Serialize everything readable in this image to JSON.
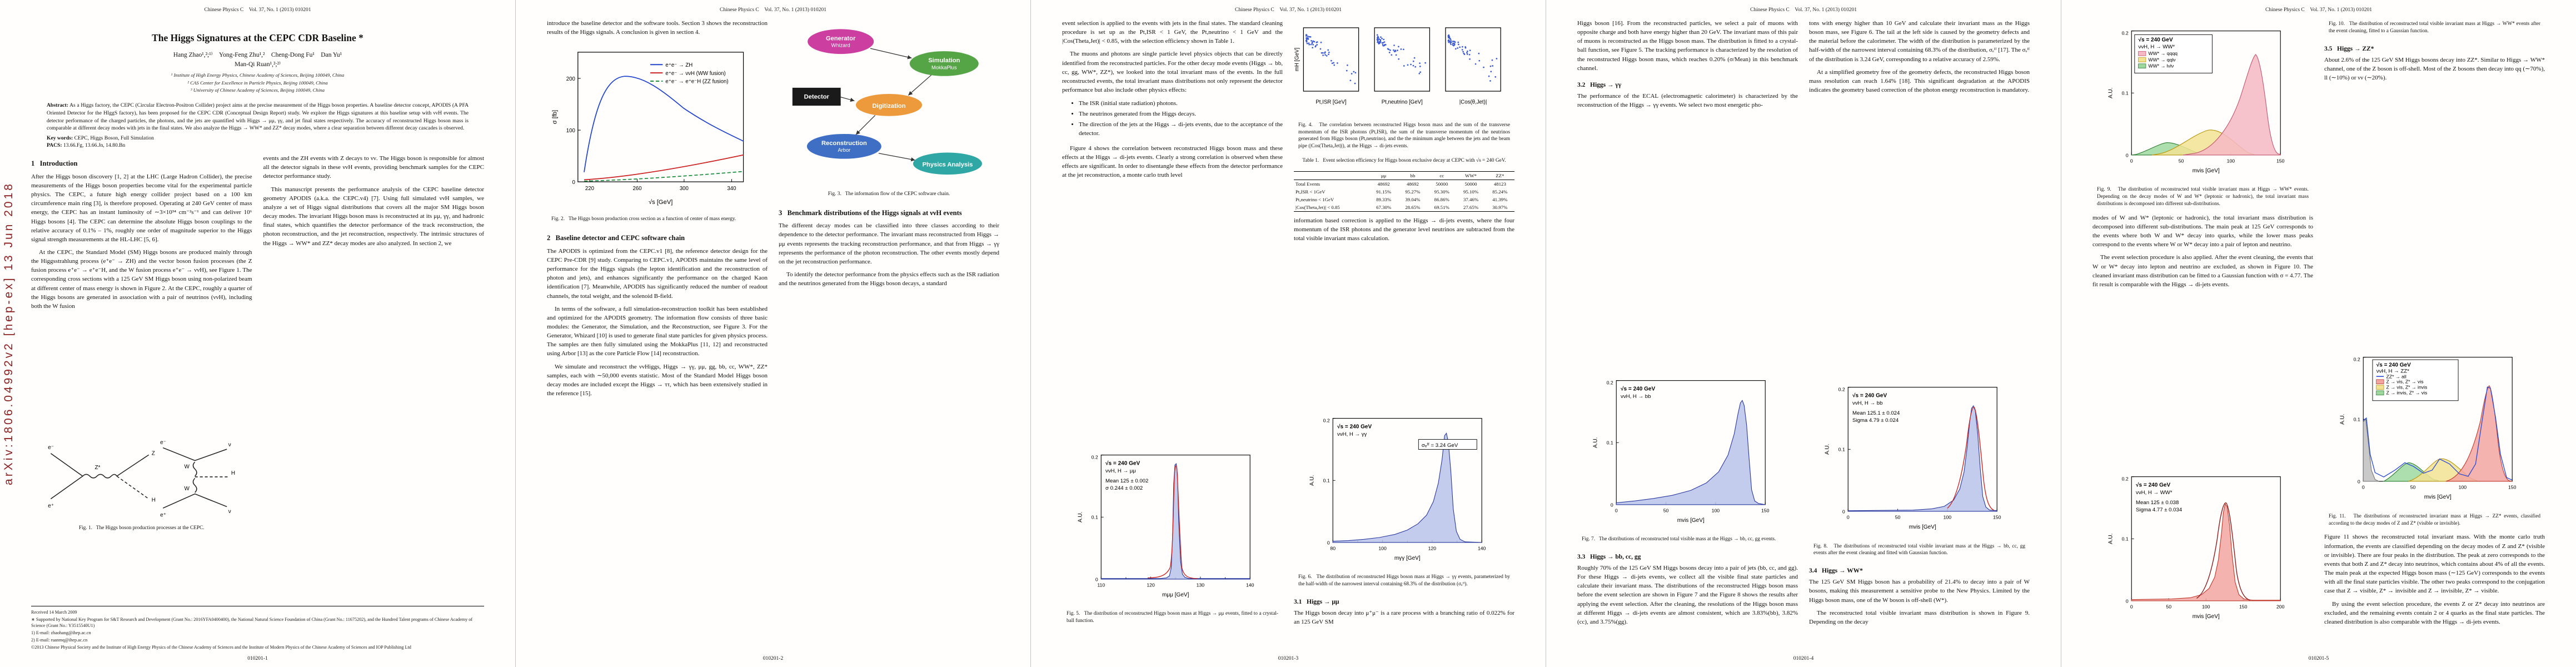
{
  "meta": {
    "arxiv_banner": "arXiv:1806.04992v2  [hep-ex]  13 Jun 2018",
    "journal_header": "Chinese Physics C    Vol. 37, No. 1 (2013) 010201"
  },
  "page1": {
    "footer": "010201-1",
    "title": "The Higgs Signatures at the CEPC CDR Baseline *",
    "authors_line1": "Hang Zhao¹,²;¹⁾    Yong-Feng Zhu¹,²    Cheng-Dong Fu¹    Dan Yu¹",
    "authors_line2": "Man-Qi Ruan¹,²;²⁾",
    "affil1": "¹ Institute of High Energy Physics, Chinese Academy of Sciences, Beijing 100049, China",
    "affil2": "² CAS Center for Excellence in Particle Physics, Beijing 100049, China",
    "affil3": "³ University of Chinese Academy of Sciences, Beijing 100049, China",
    "abstract_label": "Abstract:",
    "abstract_text": "As a Higgs factory, the CEPC (Circular Electron-Positron Collider) project aims at the precise measurement of the Higgs boson properties. A baseline detector concept, APODIS (A PFA Oriented Detector for the HIggS factory), has been proposed for the CEPC CDR (Conceptual Design Report) study. We explore the Higgs signatures at this baseline setup with ννH events. The detector performance of the charged particles, the photons, and the jets are quantified with Higgs → μμ, γγ, and jet final states respectively. The accuracy of reconstructed Higgs boson mass is comparable at different decay modes with jets in the final states. We also analyze the Higgs → WW* and ZZ* decay modes, where a clear separation between different decay cascades is observed.",
    "keywords_label": "Key words:",
    "keywords": "CEPC, Higgs Boson, Full Simulation",
    "pacs_label": "PACS:",
    "pacs": "13.66.Fg, 13.66.Jn, 14.80.Bn",
    "sec1_heading": "1   Introduction",
    "intro_p1": "After the Higgs boson discovery [1, 2] at the LHC (Large Hadron Collider), the precise measurements of the Higgs boson properties become vital for the experimental particle physics. The CEPC, a future high energy collider project based on a 100 km circumference main ring [3], is therefore proposed. Operating at 240 GeV center of mass energy, the CEPC has an instant luminosity of ∼3×10³⁴ cm⁻²s⁻¹ and can deliver 10⁶ Higgs bosons [4]. The CEPC can determine the absolute Higgs boson couplings to the relative accuracy of 0.1% – 1%, roughly one order of magnitude superior to the Higgs signal strength measurements at the HL-LHC [5, 6].",
    "intro_p2": "At the CEPC, the Standard Model (SM) Higgs bosons are produced mainly through the Higgsstrahlung process (e⁺e⁻ → ZH) and the vector boson fusion processes (the Z fusion process e⁺e⁻ → e⁺e⁻H, and the W fusion process e⁺e⁻ → ννH), see Figure 1. The corresponding cross sections with a 125 GeV SM Higgs boson using non-polarized beam at different center of mass energy is shown in Figure 2. At the CEPC, roughly a quarter of the Higgs bosons are generated in association with a pair of neutrinos (ννH), including both the W fusion",
    "fig1_caption": "Fig. 1.   The Higgs boson production processes at the CEPC.",
    "col2_p1": "events and the ZH events with Z decays to νν. The Higgs boson is responsible for almost all the detector signals in these ννH events, providing benchmark samples for the CEPC detector performance study.",
    "col2_p2": "This manuscript presents the performance analysis of the CEPC baseline detector geometry APODIS (a.k.a. the CEPC.v4) [7]. Using full simulated ννH samples, we analyze a set of Higgs signal distributions that covers all the major SM Higgs boson decay modes. The invariant Higgs boson mass is reconstructed at its μμ, γγ, and hadronic final states, which quantifies the detector performance of the track reconstruction, the photon reconstruction, and the jet reconstruction, respectively. The intrinsic structures of the Higgs → WW* and ZZ* decay modes are also analyzed. In section 2, we",
    "fn_received": "Received 14 March 2009",
    "fn_support": "∗ Supported by National Key Program for S&T Research and Development (Grant No.: 2016YFA0400400), the National Natural Science Foundation of China (Grant No.: 11675202), and the Hundred Talent programs of Chinese Academy of Science (Grant No.: Y3515540U1)",
    "fn_email1": "1) E-mail: zhaohang@ihep.ac.cn",
    "fn_email2": "2) E-mail: ruanmq@ihep.ac.cn",
    "fn_copyright": "©2013 Chinese Physical Society and the Institute of High Energy Physics of the Chinese Academy of Sciences and the Institute of Modern Physics of the Chinese Academy of Sciences and IOP Publishing Ltd"
  },
  "page2": {
    "footer": "010201-2",
    "p_intro_end": "introduce the baseline detector and the software tools. Section 3 shows the reconstruction results of the Higgs signals. A conclusion is given in section 4.",
    "fig2_caption": "Fig. 2.   The Higgs boson production cross section as a function of center of mass energy.",
    "sec2_heading": "2   Baseline detector and CEPC software chain",
    "p_apodis": "The APODIS is optimized from the CEPC.v1 [8], the reference detector design for the CEPC Pre-CDR [9] study. Comparing to CEPC.v1, APODIS maintains the same level of performance for the Higgs signals (the lepton identification and the reconstruction of photon and jets), and enhances significantly the performance on the charged Kaon identification [7]. Meanwhile, APODIS has significantly reduced the number of readout channels, the total weight, and the solenoid B-field.",
    "p_software": "In terms of the software, a full simulation-reconstruction toolkit has been established and optimized for the APODIS geometry. The information flow consists of three basic modules: the Generator, the Simulation, and the Reconstruction, see Figure 3. For the Generator, Whizard [10] is used to generate final state particles for given physics process. The samples are then fully simulated using the MokkaPlus [11, 12] and reconstructed using Arbor [13] as the core Particle Flow [14] reconstruction.",
    "p_samples": "We simulate and reconstruct the ννHiggs, Higgs → γγ, μμ, gg, bb, cc, WW*, ZZ* samples, each with ∼50,000 events statistic. Most of the Standard Model Higgs boson decay modes are included except the Higgs → ττ, which has been extensively studied in the reference [15].",
    "fig3_caption": "Fig. 3.   The information flow of the CEPC software chain.",
    "sec3_heading": "3   Benchmark distributions of the Higgs signals at ννH events",
    "p_classes_a": "The different decay modes can be classified into three classes according to their dependence to the detector performance. The invariant mass reconstructed from Higgs → μμ events represents the tracking reconstruction performance, and that from Higgs → γγ represents the performance of the photon reconstruction. The other events mostly depend on the jet reconstruction performance.",
    "p_cleaning_intro": "To identify the detector performance from the physics effects such as the ISR radiation and the neutrinos generated from the Higgs boson decays, a standard"
  },
  "page3": {
    "footer": "010201-3",
    "p_selection": "event selection is applied to the events with jets in the final states. The standard cleaning procedure is set up as the Pt,ISR < 1 GeV, the Pt,neutrino < 1 GeV and the |Cos(Theta,Jet)| < 0.85, with the selection efficiency shown in Table 1.",
    "p_classes_b": "The muons and photons are single particle level physics objects that can be directly identified from the reconstructed particles. For the other decay mode events (Higgs → bb, cc, gg, WW*, ZZ*), we looked into the total invariant mass of the events. In the full reconstructed events, the total invariant mass distributions not only represent the detector performance but also include other physics effects:",
    "bullet1": "The ISR (initial state radiation) photons.",
    "bullet2": "The neutrinos generated from the Higgs decays.",
    "bullet3": "The direction of the jets at the Higgs → di-jets events, due to the acceptance of the detector.",
    "p_fig4": "Figure 4 shows the correlation between reconstructed Higgs boson mass and these effects at the Higgs → di-jets events. Clearly a strong correlation is observed when these effects are significant. In order to disentangle these effects from the detector performance at the jet reconstruction, a monte carlo truth level",
    "fig5_caption": "Fig. 5.   The distribution of reconstructed Higgs boson mass at Higgs → μμ events, fitted to a crystal-ball function.",
    "fig4_caption": "Fig. 4.   The correlation between reconstructed Higgs boson mass and the sum of the transverse momentum of the ISR photons (Pt,ISR), the sum of the transverse momentum of the neutrinos generated from Higgs boson (Pt,neutrino), and the the minimum angle between the jets and the beam pipe (|Cos(Theta,Jet)|), at the Higgs → di-jets events.",
    "table_caption": "Table 1.   Event selection efficiency for Higgs boson exclusive decay at CEPC with √s = 240 GeV.",
    "table": {
      "headers": [
        "",
        "μμ",
        "bb",
        "cc",
        "WW*",
        "ZZ*"
      ],
      "rows": [
        {
          "label": "Total Events",
          "c1": "48692",
          "c2": "48692",
          "c3": "50000",
          "c4": "50000",
          "c5": "48123"
        },
        {
          "label": "Pt,ISR < 1GeV",
          "c1": "91.15%",
          "c2": "95.27%",
          "c3": "95.30%",
          "c4": "95.10%",
          "c5": "85.24%"
        },
        {
          "label": "Pt,neutrino < 1GeV",
          "c1": "89.33%",
          "c2": "39.04%",
          "c3": "86.86%",
          "c4": "37.46%",
          "c5": "41.39%"
        },
        {
          "label": "|Cos(Theta,Jet)| < 0.85",
          "c1": "67.30%",
          "c2": "28.65%",
          "c3": "69.51%",
          "c4": "27.65%",
          "c5": "30.97%"
        }
      ]
    },
    "p_correction": "information based correction is applied to the Higgs → di-jets events, where the four momentum of the ISR photons and the generator level neutrinos are subtracted from the total visible invariant mass calculation.",
    "fig6_caption": "Fig. 6.   The distribution of reconstructed Higgs boson mass at Higgs → γγ events, parameterized by the half-width of the narrowest interval containing 68.3% of the distribution (σₑᶠᶠ).",
    "sec31_heading": "3.1   Higgs → μμ",
    "p_mumu": "The Higgs boson decay into μ⁺μ⁻ is a rare process with a branching ratio of 0.022% for an 125 GeV SM"
  },
  "page4": {
    "footer": "010201-4",
    "p_muon_sel": "Higgs boson [16]. From the reconstructed particles, we select a pair of muons with opposite charge and both have energy higher than 20 GeV. The invariant mass of this pair of muons is reconstructed as the Higgs boson mass. The distribution is fitted to a crystal-ball function, see Figure 5. The tracking performance is characterized by the resolution of the reconstructed Higgs boson mass, which reaches 0.20% (σ/Mean) in this benchmark channel.",
    "sec32_heading": "3.2   Higgs → γγ",
    "p_ecal": "The performance of the ECAL (electromagnetic calorimeter) is characterized by the reconstruction of the Higgs → γγ events. We select two most energetic pho-",
    "fig7_caption": "Fig. 7.   The distributions of reconstructed total visible mass at the Higgs → bb, cc, gg events.",
    "sec33_heading": "3.3   Higgs → bb, cc, gg",
    "p_dijets": "Roughly 70% of the 125 GeV SM Higgs bosons decay into a pair of jets (bb, cc, and gg). For these Higgs → di-jets events, we collect all the visible final state particles and calculate their invariant mass. The distributions of the reconstructed Higgs boson mass before the event selection are shown in Figure 7 and the Figure 8 shows the results after applying the event selection. After the cleaning, the resolutions of the Higgs boson mass at different Higgs → di-jets events are almost consistent, which are 3.83%(bb), 3.82%(cc), and 3.75%(gg).",
    "p_photons": "tons with energy higher than 10 GeV and calculate their invariant mass as the Higgs boson mass, see Figure 6. The tail at the left side is caused by the geometry defects and the material before the calorimeter. The width of the distribution is parameterized by the half-width of the narrowest interval containing 68.3% of the distribution, σₑᶠᶠ [17]. The σₑᶠᶠ of the distribution is 3.24 GeV, corresponding to a relative accuracy of 2.59%.",
    "p_simplified": "At a simplified geometry free of the geometry defects, the reconstructed Higgs boson mass resolution can reach 1.64% [18]. This significant degradation at the APODIS indicates the geometry based correction of the photon energy reconstruction is mandatory.",
    "fig8_caption": "Fig. 8.   The distributions of reconstructed total visible invariant mass at the Higgs → bb, cc, gg events after the event cleaning and fitted with Gaussian function.",
    "sec34_heading": "3.4   Higgs → WW*",
    "p_ww1": "The 125 GeV SM Higgs boson has a probability of 21.4% to decay into a pair of W bosons, making this measurement a sensitive probe to the New Physics. Limited by the Higgs boson mass, one of the W boson is off-shell (W*).",
    "p_ww2": "The reconstructed total visible invariant mass distribution is shown in Figure 9. Depending on the decay"
  },
  "page5": {
    "footer": "010201-5",
    "fig9_caption": "Fig. 9.   The distribution of reconstructed total visible invariant mass at Higgs → WW* events. Depending on the decay modes of W and W* (leptonic or hadronic), the total invariant mass distributions is decomposed into different sub-distributions.",
    "p_ww_cont": "modes of W and W* (leptonic or hadronic), the total invariant mass distribution is decomposed into different sub-distributions. The main peak at 125 GeV corresponds to the events where both W and W* decay into quarks, while the lower mass peaks correspond to the events where W or W* decay into a pair of lepton and neutrino.",
    "p_ww_clean": "The event selection procedure is also applied. After the event cleaning, the events that W or W* decay into lepton and neutrino are excluded, as shown in Figure 10. The cleaned invariant mass distribution can be fitted to a Gaussian function with σ = 4.77. The fit result is comparable with the Higgs → di-jets events.",
    "fig10_caption": "Fig. 10.   The distribution of reconstructed total visible invariant mass at Higgs → WW* events after the event cleaning, fitted to a Gaussian function.",
    "sec35_heading": "3.5   Higgs → ZZ*",
    "p_zz1": "About 2.6% of the 125 GeV SM Higgs bosons decay into ZZ*. Similar to Higgs → WW* channel, one of the Z boson is off-shell. Most of the Z bosons then decay into qq (∼70%), ll (∼10%) or νν (∼20%).",
    "fig11_caption": "Fig. 11.   The distributions of reconstructed invariant mass at Higgs → ZZ* events, classified according to the decay modes of Z and Z* (visible or invisible).",
    "p_zz2": "Figure 11 shows the reconstructed total invariant mass. With the monte carlo truth information, the events are classified depending on the decay modes of Z and Z* (visible or invisible). There are four peaks in the distribution. The peak at zero corresponds to the events that both Z and Z* decay into neutrinos, which contains about 4% of all the events. The main peak at the expected Higgs boson mass (∼125 GeV) corresponds to the events with all the final state particles visible. The other two peaks correspond to the conjugation case that Z → visible, Z* → invisible and Z → invisible, Z* → visible.",
    "p_zz3": "By using the event selection procedure, the events Z or Z* decay into neutrinos are excluded, and the remaining events contain 2 or 4 quarks as the final state particles. The cleaned distribution is also comparable with the Higgs → di-jets events."
  },
  "figures": {
    "fig1": {
      "labels": {
        "a_em": "e⁻",
        "a_ep": "e⁺",
        "a_zs": "Z*",
        "a_z": "Z",
        "a_h": "H",
        "b_em": "e⁻",
        "b_ep": "e⁺",
        "b_nu1": "ν",
        "b_nu2": "ν",
        "b_w1": "W",
        "b_w2": "W",
        "b_h": "H"
      }
    },
    "fig2": {
      "xlabel": "√s [GeV]",
      "ylabel": "σ [fb]",
      "xticks": [
        "220",
        "260",
        "300",
        "340"
      ],
      "yticks": [
        "0",
        "100",
        "200"
      ],
      "legend": [
        "e⁺e⁻ → ZH",
        "e⁺e⁻ → ννH (WW fusion)",
        "e⁺e⁻ → e⁺e⁻H (ZZ fusion)"
      ]
    },
    "fig3": {
      "nodes": {
        "generator": "Generator",
        "whizard": "Whizard",
        "detector": "Detector",
        "simulation": "Simulation",
        "mokka": "MokkaPlus",
        "digitization": "Digitization",
        "reconstruction": "Reconstruction",
        "arbor": "Arbor",
        "analysis": "Physics Analysis"
      }
    },
    "fig4": {
      "ylabel": "mH [GeV]",
      "xlabels": [
        "Pt,ISR [GeV]",
        "Pt,neutrino [GeV]",
        "|Cos(θ,Jet)|"
      ]
    },
    "fig5": {
      "xlabel": "mμμ [GeV]",
      "ylabel": "A.U.",
      "xticks": [
        "110",
        "120",
        "130",
        "140"
      ],
      "yticks": [
        "0",
        "0.1",
        "0.2"
      ],
      "stats": [
        "√s = 240 GeV",
        "ννH, H → μμ",
        "Mean  125 ± 0.002",
        "σ  0.244 ± 0.002"
      ]
    },
    "fig6": {
      "xlabel": "mγγ [GeV]",
      "ylabel": "A.U.",
      "xticks": [
        "80",
        "100",
        "120",
        "140"
      ],
      "yticks": [
        "0",
        "0.1",
        "0.2"
      ],
      "stats": [
        "√s = 240 GeV",
        "ννH, H → γγ"
      ],
      "sigma_label": "σₑᶠᶠ = 3.24 GeV"
    },
    "fig7": {
      "xlabel": "mvis [GeV]",
      "ylabel": "A.U.",
      "xticks": [
        "0",
        "50",
        "100",
        "150"
      ],
      "yticks": [
        "0",
        "0.1",
        "0.2"
      ],
      "stats": [
        "√s = 240 GeV",
        "ννH, H → bb"
      ]
    },
    "fig8": {
      "xlabel": "mvis [GeV]",
      "ylabel": "A.U.",
      "xticks": [
        "0",
        "50",
        "100",
        "150"
      ],
      "yticks": [
        "0",
        "0.1",
        "0.2"
      ],
      "stats": [
        "√s = 240 GeV",
        "ννH, H → bb",
        "Mean  125.1 ± 0.024",
        "Sigma  4.79 ± 0.024"
      ]
    },
    "fig9": {
      "xlabel": "mvis [GeV]",
      "ylabel": "A.U.",
      "xticks": [
        "0",
        "50",
        "100",
        "150"
      ],
      "yticks": [
        "0",
        "0.1",
        "0.2"
      ],
      "legend_header": [
        "√s = 240 GeV",
        "ννH, H → WW*"
      ],
      "entries": [
        "WW* → qqqq",
        "WW* → qqlν",
        "WW* → lνlν"
      ]
    },
    "fig10": {
      "xlabel": "mvis [GeV]",
      "ylabel": "A.U.",
      "xticks": [
        "0",
        "50",
        "100",
        "150",
        "200"
      ],
      "yticks": [
        "0",
        "0.1",
        "0.2"
      ],
      "stats": [
        "√s = 240 GeV",
        "ννH, H → WW*",
        "Mean  125 ± 0.038",
        "Sigma  4.77 ± 0.034"
      ]
    },
    "fig11": {
      "xlabel": "mvis [GeV]",
      "ylabel": "A.U.",
      "xticks": [
        "0",
        "50",
        "100",
        "150"
      ],
      "yticks": [
        "0",
        "0.1",
        "0.2"
      ],
      "legend_header": [
        "√s = 240 GeV",
        "ννH, H → ZZ*"
      ],
      "entries": [
        "ZZ* → all",
        "Z → vis, Z* → vis",
        "Z → vis, Z* → invis",
        "Z → invis, Z* → vis"
      ]
    }
  }
}
